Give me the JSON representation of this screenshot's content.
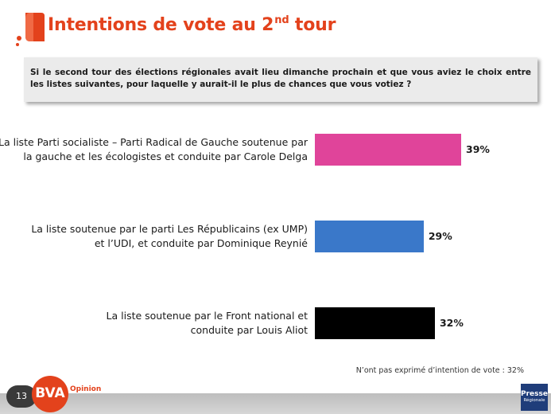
{
  "header": {
    "title_main": "Intentions de vote au 2",
    "title_sup": "nd",
    "title_end": " tour"
  },
  "question": "Si le second tour des élections régionales avait lieu dimanche prochain et que vous aviez le choix entre les listes suivantes, pour laquelle y aurait-il le plus de chances que vous votiez ?",
  "chart_data": {
    "type": "bar",
    "orientation": "horizontal",
    "categories": [
      [
        "La liste Parti socialiste – Parti Radical de Gauche soutenue par",
        "la gauche et les écologistes et conduite par Carole Delga"
      ],
      [
        "La liste soutenue par le parti Les Républicains (ex UMP)",
        "et l’UDI, et conduite par Dominique Reynié"
      ],
      [
        "La liste soutenue par le Front national et",
        "conduite par Louis Aliot"
      ]
    ],
    "values": [
      39,
      29,
      32
    ],
    "value_labels": [
      "39%",
      "29%",
      "32%"
    ],
    "colors": [
      "#e0449a",
      "#3a78c9",
      "#000000"
    ],
    "xlim": [
      0,
      100
    ],
    "grid": false,
    "legend": "none"
  },
  "footnote": "N’ont pas exprimé d’intention de vote : 32%",
  "footer": {
    "page_number": "13",
    "brand": "BVA",
    "brand_suffix": "Opinion",
    "partner_line1": "Presse",
    "partner_line2": "Régionale"
  },
  "colors": {
    "title": "#e3421c",
    "question_bg": "#ebebeb",
    "footer_bar": "#c8c8c8"
  }
}
